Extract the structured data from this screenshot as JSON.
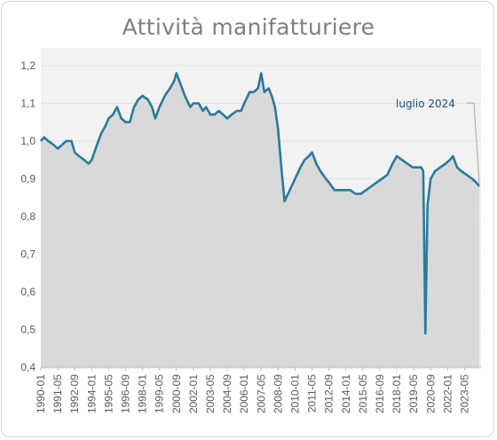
{
  "chart_data": {
    "type": "area",
    "title": "Attività manifatturiere",
    "xlabel": "",
    "ylabel": "",
    "ylim": [
      0.4,
      1.2
    ],
    "yticks": [
      "0,4",
      "0,5",
      "0,6",
      "0,7",
      "0,8",
      "0,9",
      "1,0",
      "1,1",
      "1,2"
    ],
    "xticks": [
      "1990-01",
      "1991-05",
      "1992-09",
      "1994-01",
      "1995-05",
      "1996-09",
      "1998-01",
      "1999-05",
      "2000-09",
      "2002-01",
      "2003-05",
      "2004-09",
      "2006-01",
      "2007-05",
      "2008-09",
      "2010-01",
      "2011-05",
      "2012-09",
      "2014-01",
      "2015-05",
      "2016-09",
      "2018-01",
      "2019-05",
      "2020-09",
      "2022-01",
      "2023-05"
    ],
    "annotation": "luglio 2024",
    "colors": {
      "line": "#2a7a9b",
      "area": "#d9d9d9",
      "annotation": "#1f4e79"
    },
    "grid": true,
    "series": [
      {
        "points": [
          [
            "1990-01",
            1.0
          ],
          [
            "1990-04",
            1.01
          ],
          [
            "1990-08",
            1.0
          ],
          [
            "1991-01",
            0.99
          ],
          [
            "1991-05",
            0.98
          ],
          [
            "1991-09",
            0.99
          ],
          [
            "1992-01",
            1.0
          ],
          [
            "1992-06",
            1.0
          ],
          [
            "1992-09",
            0.97
          ],
          [
            "1993-01",
            0.96
          ],
          [
            "1993-06",
            0.95
          ],
          [
            "1993-10",
            0.94
          ],
          [
            "1994-01",
            0.95
          ],
          [
            "1994-06",
            0.99
          ],
          [
            "1994-10",
            1.02
          ],
          [
            "1995-02",
            1.04
          ],
          [
            "1995-05",
            1.06
          ],
          [
            "1995-09",
            1.07
          ],
          [
            "1996-01",
            1.09
          ],
          [
            "1996-05",
            1.06
          ],
          [
            "1996-09",
            1.05
          ],
          [
            "1997-01",
            1.05
          ],
          [
            "1997-05",
            1.09
          ],
          [
            "1997-09",
            1.11
          ],
          [
            "1998-01",
            1.12
          ],
          [
            "1998-06",
            1.11
          ],
          [
            "1998-10",
            1.09
          ],
          [
            "1999-01",
            1.06
          ],
          [
            "1999-05",
            1.09
          ],
          [
            "1999-10",
            1.12
          ],
          [
            "2000-03",
            1.14
          ],
          [
            "2000-07",
            1.16
          ],
          [
            "2000-09",
            1.18
          ],
          [
            "2001-01",
            1.15
          ],
          [
            "2001-05",
            1.12
          ],
          [
            "2001-10",
            1.09
          ],
          [
            "2002-01",
            1.1
          ],
          [
            "2002-06",
            1.1
          ],
          [
            "2002-10",
            1.08
          ],
          [
            "2003-01",
            1.09
          ],
          [
            "2003-05",
            1.07
          ],
          [
            "2003-09",
            1.07
          ],
          [
            "2004-01",
            1.08
          ],
          [
            "2004-05",
            1.07
          ],
          [
            "2004-09",
            1.06
          ],
          [
            "2005-01",
            1.07
          ],
          [
            "2005-06",
            1.08
          ],
          [
            "2005-10",
            1.08
          ],
          [
            "2006-01",
            1.1
          ],
          [
            "2006-06",
            1.13
          ],
          [
            "2006-10",
            1.13
          ],
          [
            "2007-02",
            1.14
          ],
          [
            "2007-05",
            1.18
          ],
          [
            "2007-08",
            1.13
          ],
          [
            "2007-12",
            1.14
          ],
          [
            "2008-03",
            1.12
          ],
          [
            "2008-06",
            1.09
          ],
          [
            "2008-09",
            1.03
          ],
          [
            "2008-12",
            0.93
          ],
          [
            "2009-03",
            0.84
          ],
          [
            "2009-08",
            0.87
          ],
          [
            "2010-01",
            0.9
          ],
          [
            "2010-06",
            0.93
          ],
          [
            "2010-10",
            0.95
          ],
          [
            "2011-02",
            0.96
          ],
          [
            "2011-05",
            0.97
          ],
          [
            "2011-09",
            0.94
          ],
          [
            "2012-01",
            0.92
          ],
          [
            "2012-06",
            0.9
          ],
          [
            "2012-09",
            0.89
          ],
          [
            "2013-02",
            0.87
          ],
          [
            "2013-07",
            0.87
          ],
          [
            "2013-12",
            0.87
          ],
          [
            "2014-05",
            0.87
          ],
          [
            "2014-10",
            0.86
          ],
          [
            "2015-03",
            0.86
          ],
          [
            "2015-08",
            0.87
          ],
          [
            "2016-01",
            0.88
          ],
          [
            "2016-06",
            0.89
          ],
          [
            "2016-11",
            0.9
          ],
          [
            "2017-04",
            0.91
          ],
          [
            "2017-09",
            0.94
          ],
          [
            "2018-01",
            0.96
          ],
          [
            "2018-06",
            0.95
          ],
          [
            "2018-11",
            0.94
          ],
          [
            "2019-04",
            0.93
          ],
          [
            "2019-09",
            0.93
          ],
          [
            "2019-12",
            0.93
          ],
          [
            "2020-02",
            0.92
          ],
          [
            "2020-04",
            0.49
          ],
          [
            "2020-06",
            0.83
          ],
          [
            "2020-09",
            0.9
          ],
          [
            "2021-01",
            0.92
          ],
          [
            "2021-06",
            0.93
          ],
          [
            "2021-11",
            0.94
          ],
          [
            "2022-03",
            0.95
          ],
          [
            "2022-06",
            0.96
          ],
          [
            "2022-10",
            0.93
          ],
          [
            "2023-02",
            0.92
          ],
          [
            "2023-07",
            0.91
          ],
          [
            "2023-12",
            0.9
          ],
          [
            "2024-04",
            0.89
          ],
          [
            "2024-07",
            0.88
          ]
        ]
      }
    ]
  }
}
